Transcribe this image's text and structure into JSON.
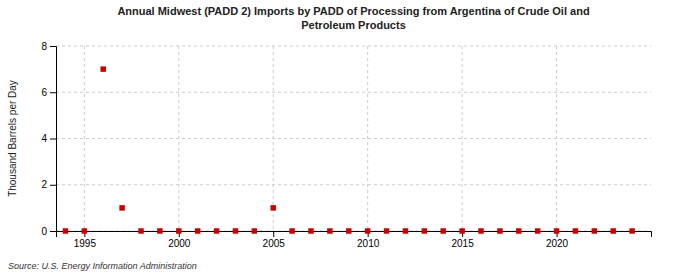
{
  "chart_data": {
    "type": "scatter",
    "title": "Annual Midwest (PADD 2) Imports by PADD of Processing from Argentina of Crude Oil and\nPetroleum Products",
    "y_label": "Thousand Barrels per Day",
    "annotations": [
      "Source: U.S. Energy Information Administration"
    ],
    "x": [
      1994,
      1995,
      1996,
      1997,
      1998,
      1999,
      2000,
      2001,
      2002,
      2003,
      2004,
      2005,
      2006,
      2007,
      2008,
      2009,
      2010,
      2011,
      2012,
      2013,
      2014,
      2015,
      2016,
      2017,
      2018,
      2019,
      2020,
      2021,
      2022,
      2023,
      2024
    ],
    "values": [
      0,
      0,
      7,
      1,
      0,
      0,
      0,
      0,
      0,
      0,
      0,
      1,
      0,
      0,
      0,
      0,
      0,
      0,
      0,
      0,
      0,
      0,
      0,
      0,
      0,
      0,
      0,
      0,
      0,
      0,
      0
    ],
    "color": "#cc0000",
    "marker": "square",
    "xlim": [
      1993.5,
      2025
    ],
    "xticks": [
      1995,
      2000,
      2005,
      2010,
      2015,
      2020
    ],
    "ylim": [
      0,
      8
    ],
    "yticks": [
      0,
      2,
      4,
      6,
      8
    ],
    "grid": true
  }
}
